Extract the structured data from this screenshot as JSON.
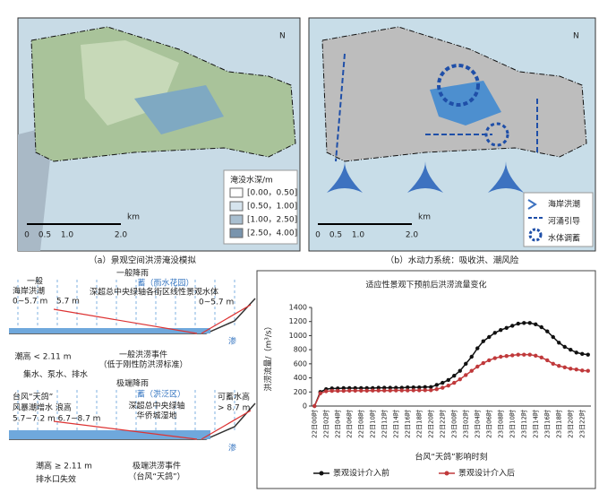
{
  "panel_a": {
    "north": "N",
    "legend_title": "淹没水深/m",
    "legend_items": [
      "[0.00，0.50]",
      "[0.50，1.00]",
      "[1.00，2.50]",
      "[2.50，4.00]"
    ],
    "legend_colors": [
      "#ffffff",
      "#d6e4ee",
      "#a9bfd0",
      "#7994ad"
    ],
    "scale": [
      "0",
      "0.5",
      "1.0",
      "2.0",
      "km"
    ],
    "caption": "（a）景观空间洪涝淹没模拟"
  },
  "panel_b": {
    "north": "N",
    "legend_items": [
      "海岸洪潮",
      "河涌引导",
      "水体调蓄"
    ],
    "scale": [
      "0",
      "0.5",
      "1.0",
      "2.0",
      "km"
    ],
    "caption": "（b）水动力系统：吸收洪、潮风险"
  },
  "diagram_top": {
    "rain": "一般降雨",
    "store": "蓄（雨水花园）",
    "left_1": "一般",
    "left_2": "海岸洪潮",
    "left_3": "0~5.7 m",
    "left_4": "5.7 m",
    "center": "深超总中央绿轴各街区线性景观水体",
    "right": "0~5.7 m",
    "tide": "潮高 < 2.11 m",
    "event_1": "一般洪涝事件",
    "event_2": "（低于刚性防洪涝标准）",
    "action": "集水、泵水、排水",
    "seep": "渗"
  },
  "diagram_bottom": {
    "rain": "极端降雨",
    "store": "蓄（洪泛区）",
    "left_1": "台风“天鸽”",
    "left_2": "风暴潮增水  浪高",
    "left_3": "5.7~7.2 m  6.7~8.7 m",
    "center_1": "深超总中央绿轴",
    "center_2": "华侨城湿地",
    "right_1": "可蓄水高",
    "right_2": "> 8.7 m",
    "tide": "潮高 ≥ 2.11 m",
    "drain": "排水口失效",
    "event_1": "极端洪涝事件",
    "event_2": "（台风“天鸽”）",
    "seep": "渗"
  },
  "chart_data": {
    "type": "line",
    "title": "适应性景观下预前后洪涝流量变化",
    "ylabel": "洪涝流量/（m³/s）",
    "xlabel": "台风“天鸽”影响时刻",
    "categories": [
      "22日00时",
      null,
      "22日02时",
      null,
      "22日04时",
      null,
      "22日06时",
      null,
      "22日08时",
      null,
      "22日10时",
      null,
      "22日12时",
      null,
      "22日14时",
      null,
      "22日16时",
      null,
      "22日18时",
      null,
      "22日20时",
      null,
      "22日22时",
      null,
      "23日00时",
      null,
      "23日02时",
      null,
      "23日04时",
      null,
      "23日06时",
      null,
      "23日08时",
      null,
      "23日10时",
      null,
      "23日12时",
      null,
      "23日14时",
      null,
      "23日16时",
      null,
      "23日18时",
      null,
      "23日20时",
      null,
      "23日22时",
      null
    ],
    "ylim": [
      0,
      1400
    ],
    "yticks": [
      0,
      200,
      400,
      600,
      800,
      1000,
      1200,
      1400
    ],
    "series": [
      {
        "name": "景观设计介入前",
        "color": "#111111",
        "values": [
          0,
          200,
          240,
          250,
          250,
          255,
          255,
          255,
          255,
          255,
          255,
          260,
          260,
          260,
          260,
          260,
          265,
          265,
          265,
          270,
          270,
          300,
          330,
          370,
          430,
          500,
          600,
          700,
          820,
          920,
          980,
          1040,
          1080,
          1110,
          1140,
          1170,
          1180,
          1180,
          1160,
          1120,
          1060,
          980,
          900,
          840,
          800,
          760,
          740,
          730
        ]
      },
      {
        "name": "景观设计介入后",
        "color": "#c0393b",
        "values": [
          0,
          180,
          210,
          215,
          215,
          215,
          218,
          218,
          218,
          218,
          220,
          220,
          220,
          220,
          222,
          222,
          222,
          224,
          224,
          225,
          225,
          240,
          260,
          290,
          330,
          380,
          440,
          500,
          560,
          610,
          650,
          680,
          700,
          710,
          720,
          730,
          730,
          730,
          715,
          690,
          650,
          600,
          570,
          550,
          530,
          520,
          505,
          500
        ]
      }
    ],
    "legend": "bottom"
  }
}
